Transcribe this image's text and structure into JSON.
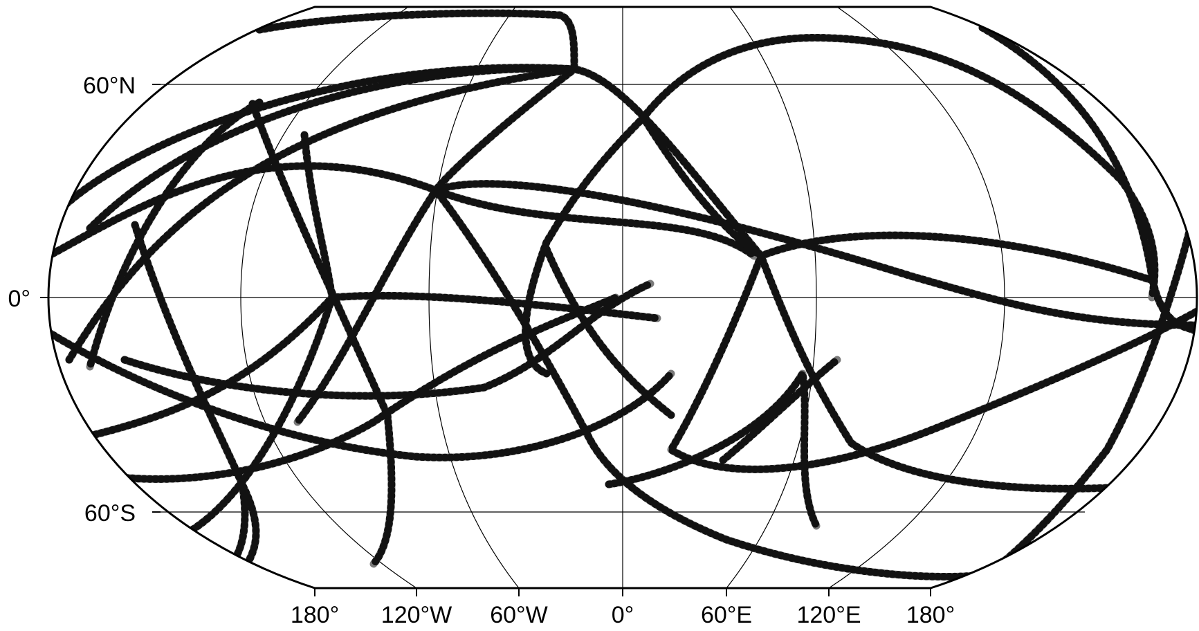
{
  "map": {
    "projection": "Winkel-like global projection (Robinson-style)",
    "frame_color": "#000000",
    "graticule_color": "#000000",
    "track_color": "#7a7a7a",
    "track_tick_color": "#000000",
    "latitude_labels": [
      {
        "lat": 60,
        "text": "60°N"
      },
      {
        "lat": 0,
        "text": "0°"
      },
      {
        "lat": -60,
        "text": "60°S"
      }
    ],
    "longitude_labels": [
      {
        "lon": -180,
        "text": "180°"
      },
      {
        "lon": -120,
        "text": "120°W"
      },
      {
        "lon": -60,
        "text": "60°W"
      },
      {
        "lon": 0,
        "text": "0°"
      },
      {
        "lon": 60,
        "text": "60°E"
      },
      {
        "lon": 120,
        "text": "120°E"
      },
      {
        "lon": 180,
        "text": "180°"
      }
    ]
  }
}
